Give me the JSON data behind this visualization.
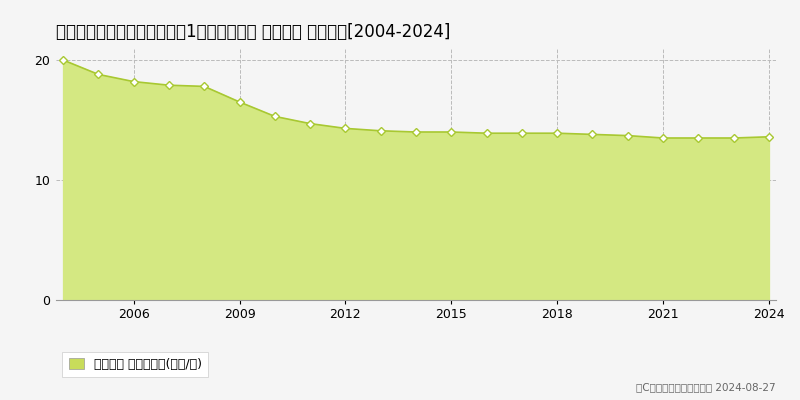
{
  "title": "埼玉県さいたま市見沼区染豆1丁目２５０番 地価公示 地価推移[2004-2024]",
  "years": [
    2004,
    2005,
    2006,
    2007,
    2008,
    2009,
    2010,
    2011,
    2012,
    2013,
    2014,
    2015,
    2016,
    2017,
    2018,
    2019,
    2020,
    2021,
    2022,
    2023,
    2024
  ],
  "values": [
    20.0,
    18.8,
    18.2,
    17.9,
    17.8,
    16.5,
    15.3,
    14.7,
    14.3,
    14.1,
    14.0,
    14.0,
    13.9,
    13.9,
    13.9,
    13.8,
    13.7,
    13.5,
    13.5,
    13.5,
    13.6
  ],
  "ylim": [
    0,
    21
  ],
  "yticks": [
    0,
    10,
    20
  ],
  "xticks": [
    2006,
    2009,
    2012,
    2015,
    2018,
    2021,
    2024
  ],
  "line_color": "#a8c832",
  "fill_color": "#d4e882",
  "marker_facecolor": "#ffffff",
  "marker_edgecolor": "#a8c832",
  "grid_color": "#bbbbbb",
  "bg_color": "#f5f5f5",
  "plot_bg_color": "#f5f5f5",
  "legend_label": "地価公示 平均嵪単価(万円/嵪)",
  "legend_marker_color": "#c8dc5a",
  "copyright_text": "（C）土地価格ドットコム 2024-08-27",
  "title_fontsize": 12,
  "axis_fontsize": 9,
  "legend_fontsize": 9
}
